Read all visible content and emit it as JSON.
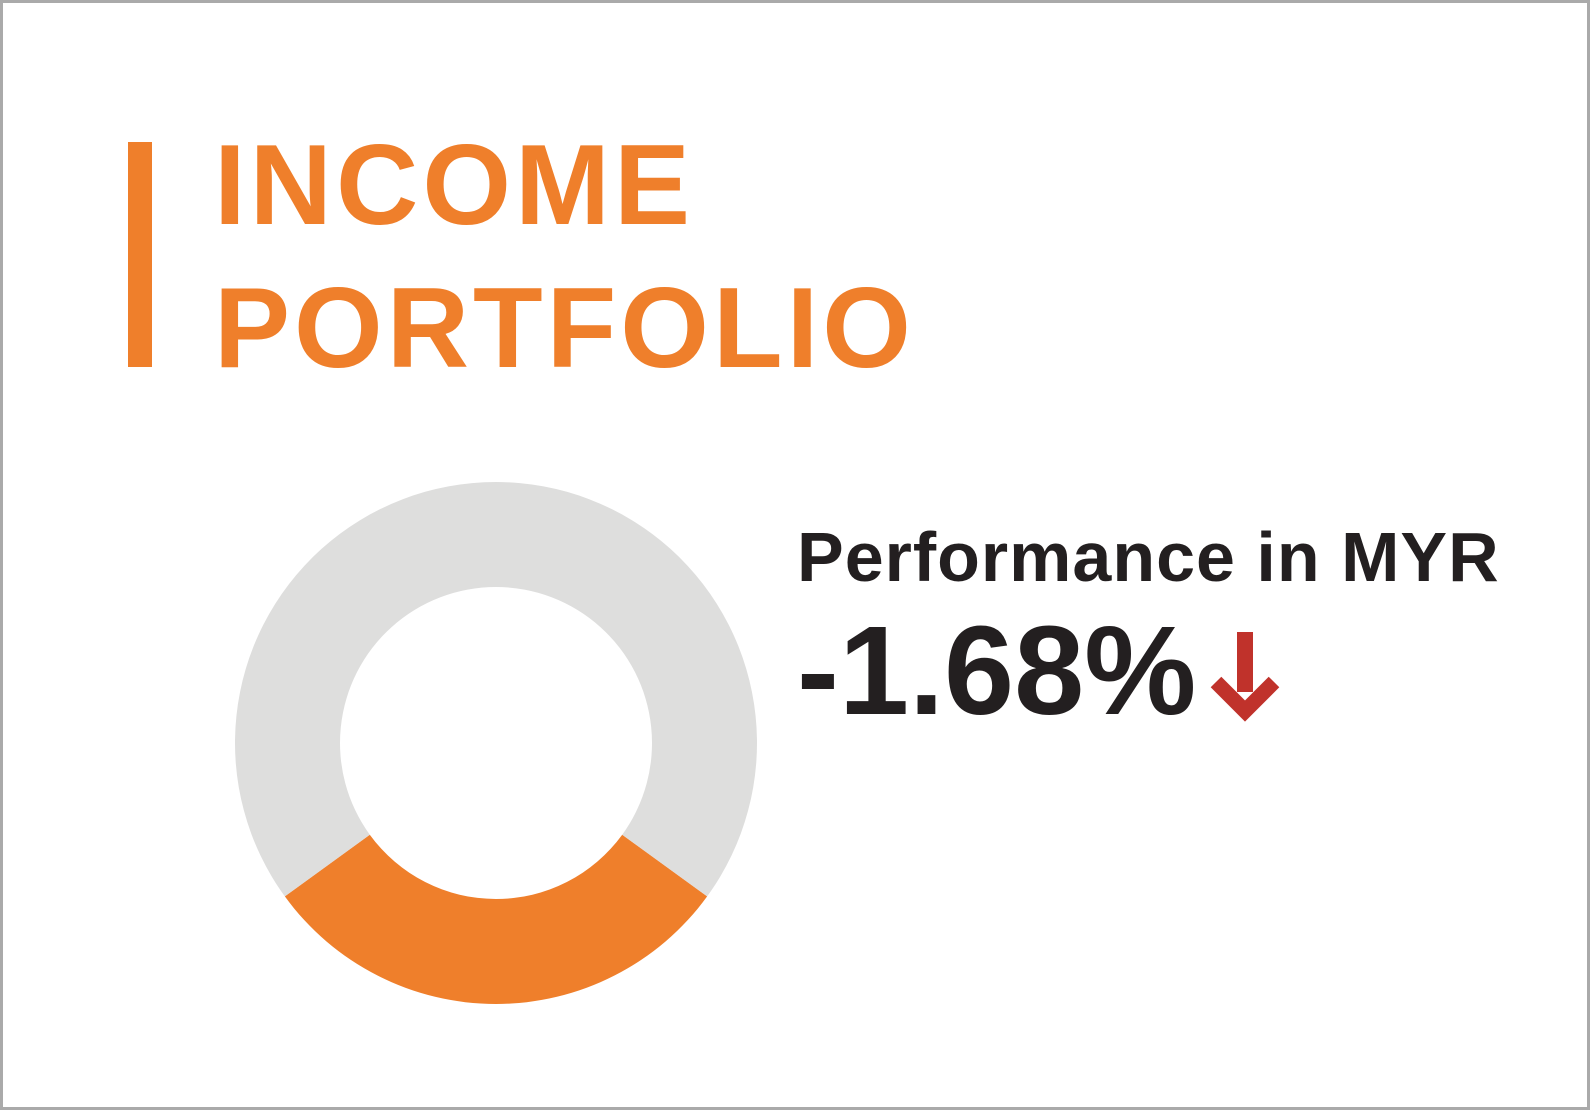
{
  "title": {
    "line1": "INCOME",
    "line2": "PORTFOLIO"
  },
  "performance": {
    "label": "Performance in MYR",
    "value": "-1.68%",
    "direction": "down",
    "arrow_icon": "arrow-down-icon"
  },
  "colors": {
    "accent": "#ef7f2b",
    "ring": "#dededd",
    "text": "#231f20",
    "down": "#c0322b"
  },
  "chart_data": {
    "type": "pie",
    "variant": "donut",
    "slices": [
      {
        "value": 30,
        "color": "#ef7f2b"
      },
      {
        "value": 70,
        "color": "#dededd"
      }
    ]
  }
}
